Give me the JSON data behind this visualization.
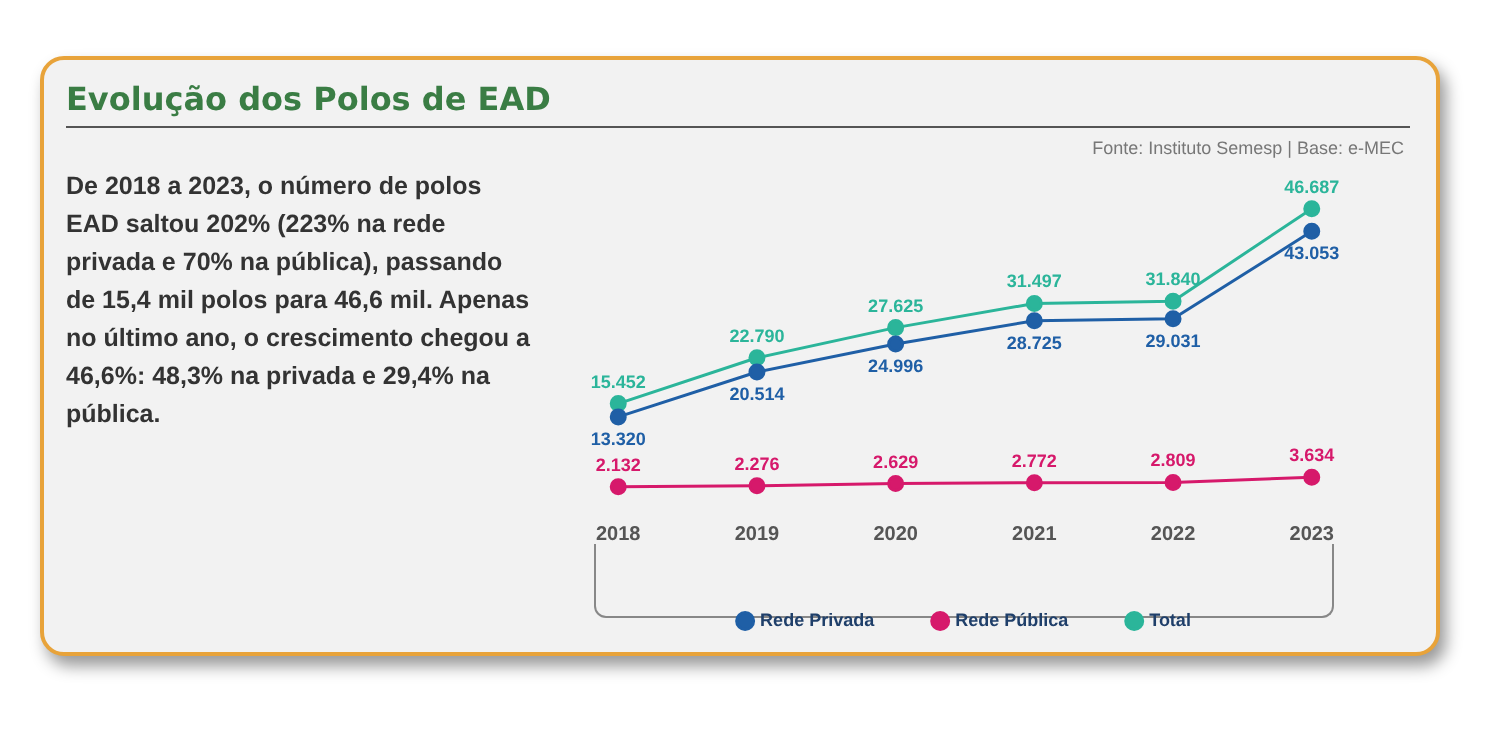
{
  "chart_data": {
    "type": "line",
    "title": "Evolução dos Polos de EAD",
    "annotations": [
      "De 2018 a 2023, o número de polos EAD saltou 202% (223% na rede privada e 70% na pública), passando de 15,4 mil polos para 46,6 mil. Apenas no último ano, o crescimento chegou a 46,6%: 48,3% na privada e 29,4% na pública.",
      "Fonte: Instituto Semesp | Base: e-MEC"
    ],
    "categories": [
      "2018",
      "2019",
      "2020",
      "2021",
      "2022",
      "2023"
    ],
    "series": [
      {
        "name": "Rede Privada",
        "color": "#1f5fa6",
        "values": [
          13320,
          20514,
          24996,
          28725,
          29031,
          43053
        ],
        "value_labels": [
          "13.320",
          "20.514",
          "24.996",
          "28.725",
          "29.031",
          "43.053"
        ]
      },
      {
        "name": "Rede Pública",
        "color": "#d6196b",
        "values": [
          2132,
          2276,
          2629,
          2772,
          2809,
          3634
        ],
        "value_labels": [
          "2.132",
          "2.276",
          "2.629",
          "2.772",
          "2.809",
          "3.634"
        ]
      },
      {
        "name": "Total",
        "color": "#2bb59a",
        "values": [
          15452,
          22790,
          27625,
          31497,
          31840,
          46687
        ],
        "value_labels": [
          "15.452",
          "22.790",
          "27.625",
          "31.497",
          "31.840",
          "46.687"
        ]
      }
    ],
    "marker": "circle",
    "legend": "bottom",
    "grid": false
  }
}
